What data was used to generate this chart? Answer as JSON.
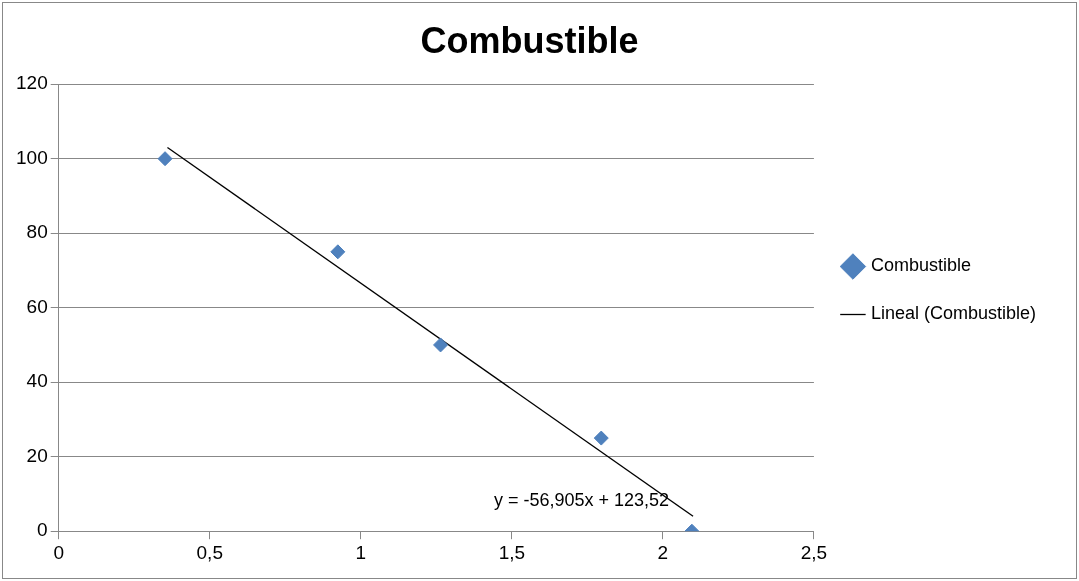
{
  "chart_data": {
    "type": "scatter",
    "title": "Combustible",
    "series": [
      {
        "name": "Combustible",
        "type": "scatter",
        "color": "#4f81bd",
        "marker": "diamond",
        "x": [
          0.352,
          0.924,
          1.264,
          1.796,
          2.096
        ],
        "values": [
          100,
          75,
          50,
          25,
          0
        ]
      },
      {
        "name": "Lineal (Combustible)",
        "type": "line",
        "color": "#000000",
        "marker": "none",
        "line_style": "solid",
        "x": [
          0.36,
          2.1
        ],
        "values": [
          103,
          4
        ]
      }
    ],
    "annotations": [
      {
        "text": "y = -56,905x + 123,52",
        "x": 2.1,
        "y": 4
      }
    ],
    "xlim": [
      0,
      2.5
    ],
    "xticks": [
      0,
      {
        "value": 0.5,
        "label": "0,5"
      },
      1,
      {
        "value": 1.5,
        "label": "1,5"
      },
      2,
      {
        "value": 2.5,
        "label": "2,5"
      }
    ],
    "ylim": [
      0,
      120
    ],
    "yticks": [
      0,
      20,
      40,
      60,
      80,
      100,
      120
    ],
    "grid": "y",
    "legend": "right"
  }
}
